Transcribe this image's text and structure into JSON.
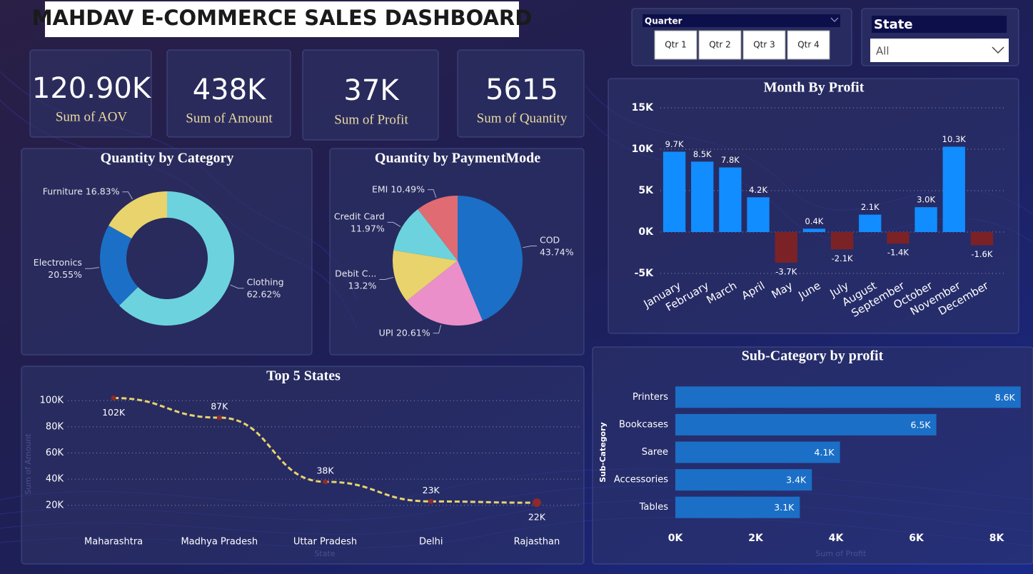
{
  "header": {
    "title": "MAHDAV E-COMMERCE SALES DASHBOARD"
  },
  "kpis": [
    {
      "value": "120.90K",
      "label": "Sum of AOV"
    },
    {
      "value": "438K",
      "label": "Sum of Amount"
    },
    {
      "value": "37K",
      "label": "Sum of Profit"
    },
    {
      "value": "5615",
      "label": "Sum of Quantity"
    }
  ],
  "filters": {
    "quarter": {
      "title": "Quarter",
      "options": [
        "Qtr 1",
        "Qtr 2",
        "Qtr 3",
        "Qtr 4"
      ]
    },
    "state": {
      "title": "State",
      "selected": "All"
    }
  },
  "chart_data": [
    {
      "type": "donut",
      "title": "Quantity by Category",
      "categories": [
        "Clothing",
        "Electronics",
        "Furniture"
      ],
      "values": [
        62.62,
        20.55,
        16.83
      ],
      "value_labels": [
        "62.62%",
        "20.55%",
        "16.83%"
      ],
      "colors": [
        "#6cd3de",
        "#1b6fc6",
        "#e9d36c"
      ]
    },
    {
      "type": "pie",
      "title": "Quantity by PaymentMode",
      "categories": [
        "COD",
        "UPI",
        "Debit C...",
        "Credit Card",
        "EMI"
      ],
      "values": [
        43.74,
        20.61,
        13.2,
        11.97,
        10.49
      ],
      "value_labels": [
        "43.74%",
        "20.61%",
        "13.2%",
        "11.97%",
        "10.49%"
      ],
      "colors": [
        "#1b6fc6",
        "#ea8fca",
        "#e9d36c",
        "#6cd3de",
        "#e06b72"
      ]
    },
    {
      "type": "bar",
      "title": "Month By Profit",
      "categories": [
        "January",
        "February",
        "March",
        "April",
        "May",
        "June",
        "July",
        "August",
        "September",
        "October",
        "November",
        "December"
      ],
      "values": [
        9700,
        8500,
        7800,
        4200,
        -3700,
        400,
        -2100,
        2100,
        -1400,
        3000,
        10300,
        -1600
      ],
      "value_labels": [
        "9.7K",
        "8.5K",
        "7.8K",
        "4.2K",
        "-3.7K",
        "0.4K",
        "-2.1K",
        "2.1K",
        "-1.4K",
        "3.0K",
        "10.3K",
        "-1.6K"
      ],
      "color": "#118dff",
      "negative_color": "#7b2226",
      "ylim": [
        -5000,
        15000
      ],
      "yticks": [
        {
          "value": -5000,
          "label": "-5K"
        },
        {
          "value": 0,
          "label": "0K"
        },
        {
          "value": 5000,
          "label": "5K"
        },
        {
          "value": 10000,
          "label": "10K"
        },
        {
          "value": 15000,
          "label": "15K"
        }
      ],
      "grid": true
    },
    {
      "type": "line",
      "title": "Top 5 States",
      "x_label": "State",
      "y_label": "Sum of Amount",
      "categories": [
        "Maharashtra",
        "Madhya Pradesh",
        "Uttar Pradesh",
        "Delhi",
        "Rajasthan"
      ],
      "values": [
        102000,
        87000,
        38000,
        23000,
        22000
      ],
      "value_labels": [
        "102K",
        "87K",
        "38K",
        "23K",
        "22K"
      ],
      "color": "#e9d36c",
      "marker_color": "#8e2a2a",
      "ylim": [
        15000,
        105000
      ],
      "yticks": [
        {
          "value": 20000,
          "label": "20K"
        },
        {
          "value": 40000,
          "label": "40K"
        },
        {
          "value": 60000,
          "label": "60K"
        },
        {
          "value": 80000,
          "label": "80K"
        },
        {
          "value": 100000,
          "label": "100K"
        }
      ],
      "grid": true
    },
    {
      "type": "bar",
      "horizontal": true,
      "title": "Sub-Category by profit",
      "x_label": "Sum of Profit",
      "y_label": "Sub-Category",
      "categories": [
        "Printers",
        "Bookcases",
        "Saree",
        "Accessories",
        "Tables"
      ],
      "values": [
        8600,
        6500,
        4100,
        3400,
        3100
      ],
      "value_labels": [
        "8.6K",
        "6.5K",
        "4.1K",
        "3.4K",
        "3.1K"
      ],
      "color": "#1b6fc6",
      "xlim": [
        0,
        8600
      ],
      "xticks": [
        {
          "value": 0,
          "label": "0K"
        },
        {
          "value": 2000,
          "label": "2K"
        },
        {
          "value": 4000,
          "label": "4K"
        },
        {
          "value": 6000,
          "label": "6K"
        },
        {
          "value": 8000,
          "label": "8K"
        }
      ],
      "grid": false
    }
  ]
}
